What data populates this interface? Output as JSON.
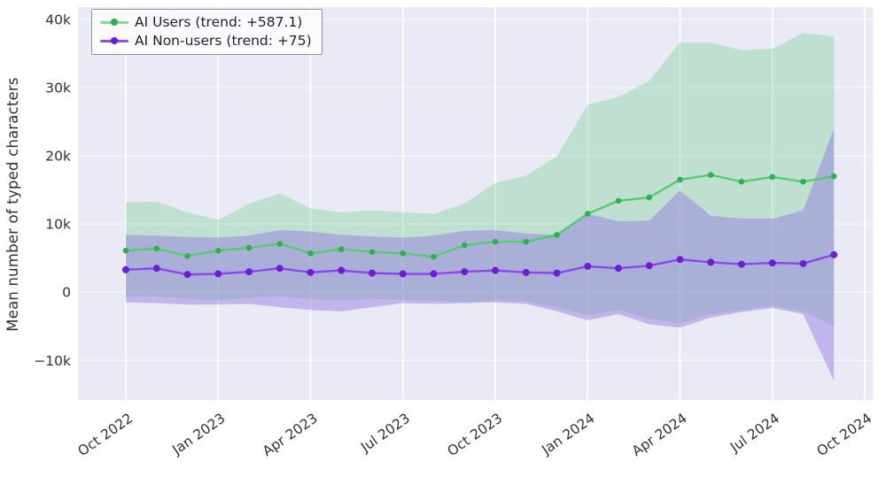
{
  "figure": {
    "background": "#ffffff",
    "plot_background": "#e9eaf5",
    "grid_color": "#ffffff",
    "tick_label_color": "#2e3138"
  },
  "y_axis": {
    "label": "Mean number of typed characters",
    "tick_labels": [
      "40k",
      "30k",
      "20k",
      "10k",
      "0",
      "−10k"
    ],
    "tick_values": [
      40000,
      30000,
      20000,
      10000,
      0,
      -10000
    ]
  },
  "x_axis": {
    "tick_labels": [
      "Oct 2022",
      "Jan 2023",
      "Apr 2023",
      "Jul 2023",
      "Oct 2023",
      "Jan 2024",
      "Apr 2024",
      "Jul 2024",
      "Oct 2024"
    ],
    "tick_months": [
      0,
      3,
      6,
      9,
      12,
      15,
      18,
      21,
      24
    ]
  },
  "legend": {
    "items": [
      {
        "label": "AI Users (trend: +587.1)",
        "line_color": "#7fdc92",
        "marker_color": "#2fae52"
      },
      {
        "label": "AI Non-users (trend: +75)",
        "line_color": "#8a4bef",
        "marker_color": "#6d1dd4"
      }
    ]
  },
  "chart_data": {
    "type": "line",
    "title": "",
    "xlabel": "",
    "ylabel": "Mean number of typed characters",
    "x_categories": [
      "Oct 2022",
      "Nov 2022",
      "Dec 2022",
      "Jan 2023",
      "Feb 2023",
      "Mar 2023",
      "Apr 2023",
      "May 2023",
      "Jun 2023",
      "Jul 2023",
      "Aug 2023",
      "Sep 2023",
      "Oct 2023",
      "Nov 2023",
      "Dec 2023",
      "Jan 2024",
      "Feb 2024",
      "Mar 2024",
      "Apr 2024",
      "May 2024",
      "Jun 2024",
      "Jul 2024",
      "Aug 2024",
      "Sep 2024"
    ],
    "x_domain_months": [
      0,
      24
    ],
    "ylim": [
      -15800,
      41800
    ],
    "grid": true,
    "legend_position": "top-left",
    "series": [
      {
        "name": "AI Users (trend: +587.1)",
        "trend": 587.1,
        "line_color": "#55cb6f",
        "marker_color": "#2fae52",
        "fill_color": "rgba(115, 205, 140, 0.35)",
        "values": [
          6100,
          6400,
          5300,
          6100,
          6500,
          7100,
          5700,
          6300,
          5900,
          5700,
          5200,
          6900,
          7400,
          7400,
          8400,
          11500,
          13400,
          13900,
          16500,
          17200,
          16200,
          16900,
          16200,
          17000
        ],
        "ci_upper": [
          13200,
          13300,
          11700,
          10600,
          13000,
          14500,
          12300,
          11700,
          12000,
          11700,
          11500,
          13000,
          16000,
          17100,
          19900,
          27500,
          28600,
          31000,
          36600,
          36600,
          35500,
          35700,
          38000,
          37500
        ],
        "ci_lower": [
          -700,
          -600,
          -1000,
          -1200,
          -800,
          -600,
          -1000,
          -1200,
          -1000,
          -1100,
          -1200,
          -1500,
          -1200,
          -1400,
          -2200,
          -3400,
          -2600,
          -3900,
          -4600,
          -3200,
          -2600,
          -2000,
          -2800,
          -5000
        ]
      },
      {
        "name": "AI Non-users (trend: +75)",
        "trend": 75,
        "line_color": "#8a48ea",
        "marker_color": "#6d1dd4",
        "fill_color": "rgba(140, 108, 226, 0.42)",
        "values": [
          3300,
          3500,
          2600,
          2700,
          3000,
          3500,
          2900,
          3200,
          2800,
          2700,
          2700,
          3000,
          3200,
          2900,
          2800,
          3800,
          3500,
          3900,
          4800,
          4400,
          4100,
          4300,
          4200,
          5500
        ],
        "ci_upper": [
          8400,
          8300,
          8100,
          8000,
          8300,
          9100,
          8900,
          8400,
          8200,
          8000,
          8300,
          9000,
          9100,
          8600,
          8400,
          11500,
          10400,
          10500,
          14900,
          11200,
          10800,
          10800,
          12000,
          24000
        ],
        "ci_lower": [
          -1500,
          -1600,
          -1800,
          -1800,
          -1700,
          -2200,
          -2600,
          -2800,
          -2200,
          -1600,
          -1700,
          -1600,
          -1500,
          -1700,
          -2800,
          -4100,
          -3200,
          -4700,
          -5200,
          -3700,
          -2900,
          -2300,
          -3200,
          -13000
        ]
      }
    ]
  }
}
